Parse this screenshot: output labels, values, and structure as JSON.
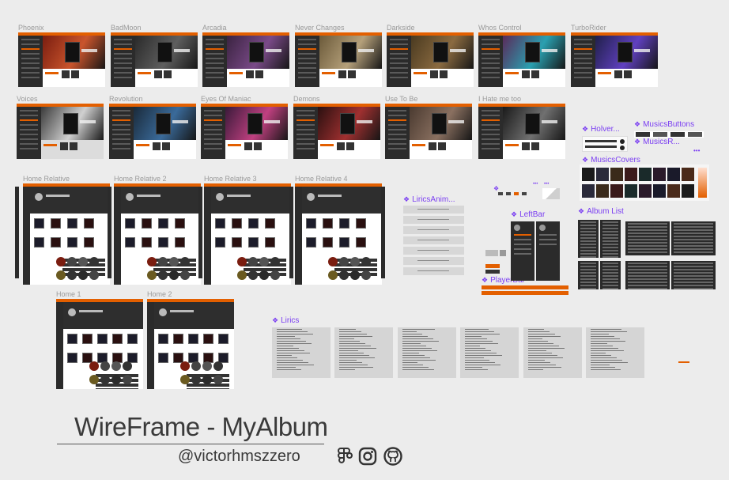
{
  "row1_frames": [
    {
      "label": "Phoenix",
      "hero_bg": "#7a1d10",
      "hero_accent": "#c9542c"
    },
    {
      "label": "BadMoon",
      "hero_bg": "#2a2a2a",
      "hero_accent": "#5e5e5e"
    },
    {
      "label": "Arcadia",
      "hero_bg": "#3a2340",
      "hero_accent": "#7a4a88"
    },
    {
      "label": "Never Changes",
      "hero_bg": "#6b5a3a",
      "hero_accent": "#b5a07a"
    },
    {
      "label": "Darkside",
      "hero_bg": "#4a3a20",
      "hero_accent": "#8a6a40"
    },
    {
      "label": "Whos Control",
      "hero_bg": "#5a2a5a",
      "hero_accent": "#2aa0b0"
    },
    {
      "label": "TurboRider",
      "hero_bg": "#20204a",
      "hero_accent": "#6040c0"
    }
  ],
  "row2_frames": [
    {
      "label": "Voices",
      "hero_bg": "#3a3a3a",
      "hero_accent": "#d0d0d0"
    },
    {
      "label": "Revolution",
      "hero_bg": "#1a2a3a",
      "hero_accent": "#3a6a9a"
    },
    {
      "label": "Eyes Of Maniac",
      "hero_bg": "#3a1a3a",
      "hero_accent": "#c04080"
    },
    {
      "label": "Demons",
      "hero_bg": "#2a1010",
      "hero_accent": "#a03030"
    },
    {
      "label": "Use To Be",
      "hero_bg": "#4a3a30",
      "hero_accent": "#8a7060"
    },
    {
      "label": "I Hate me too",
      "hero_bg": "#1a1a1a",
      "hero_accent": "#707070"
    }
  ],
  "row3_frames": [
    {
      "label": "Home Relative"
    },
    {
      "label": "Home Relative 2"
    },
    {
      "label": "Home Relative 3"
    },
    {
      "label": "Home Relative 4"
    }
  ],
  "row4_frames": [
    {
      "label": "Home 1"
    },
    {
      "label": "Home 2"
    }
  ],
  "components": {
    "holver": "Holver...",
    "music_buttons": "MusicsButtons",
    "musics_r": "MusicsR...",
    "musics_covers": "MusicsCovers",
    "lirics_anim": "LiricsAnim...",
    "left_bar": "LeftBar",
    "album_list": "Album List",
    "player_bar": "PlayerBar",
    "lirics": "Lirics"
  },
  "footer": {
    "title": "WireFrame - MyAlbum",
    "handle": "@victorhmszzero"
  },
  "social_icons": [
    "figma-icon",
    "instagram-icon",
    "github-icon"
  ],
  "colors": {
    "accent": "#e35f00",
    "component_label": "#7b3ff2",
    "frame_label": "#9a9a9a",
    "sidebar": "#2b2b2b",
    "canvas": "#ececec"
  }
}
